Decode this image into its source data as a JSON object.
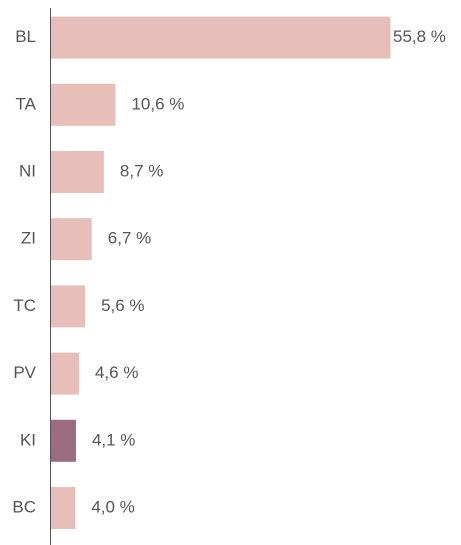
{
  "chart_data": {
    "type": "hbar",
    "categories": [
      "BL",
      "TA",
      "NI",
      "ZI",
      "TC",
      "PV",
      "KI",
      "BC"
    ],
    "values": [
      55.8,
      10.6,
      8.7,
      6.7,
      5.6,
      4.6,
      4.1,
      4.0
    ],
    "value_labels": [
      "55,8 %",
      "10,6 %",
      "8,7 %",
      "6,7 %",
      "5,6 %",
      "4,6 %",
      "4,1 %",
      "4,0 %"
    ],
    "colors": [
      "#e8bfb8",
      "#e8bfb8",
      "#e8bfb8",
      "#e8bfb8",
      "#e8bfb8",
      "#e8bfb8",
      "#9b6b80",
      "#e8bfb8"
    ],
    "xlim": [
      0,
      60
    ]
  }
}
